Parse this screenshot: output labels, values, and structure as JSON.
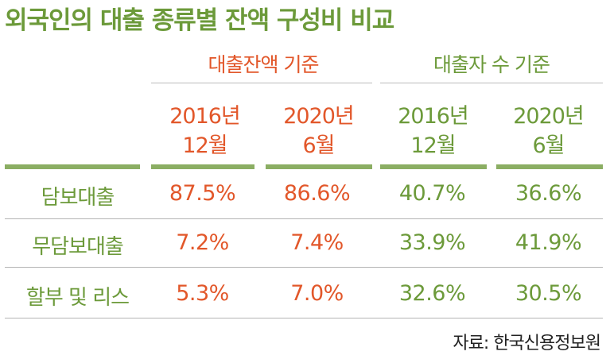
{
  "title": "외국인의 대출 종류별 잔액 구성비 비교",
  "source": "자료: 한국신용정보원",
  "chart_data": {
    "type": "table",
    "title": "외국인의 대출 종류별 잔액 구성비 비교",
    "column_groups": [
      {
        "label": "대출잔액 기준",
        "color": "#e2572a"
      },
      {
        "label": "대출자 수 기준",
        "color": "#6c9a3a"
      }
    ],
    "columns": [
      {
        "line1": "2016년",
        "line2": "12월"
      },
      {
        "line1": "2020년",
        "line2": "6월"
      },
      {
        "line1": "2016년",
        "line2": "12월"
      },
      {
        "line1": "2020년",
        "line2": "6월"
      }
    ],
    "rows": [
      {
        "label": "담보대출",
        "values": [
          "87.5%",
          "86.6%",
          "40.7%",
          "36.6%"
        ]
      },
      {
        "label": "무담보대출",
        "values": [
          "7.2%",
          "7.4%",
          "33.9%",
          "41.9%"
        ]
      },
      {
        "label": "할부 및 리스",
        "values": [
          "5.3%",
          "7.0%",
          "32.6%",
          "30.5%"
        ]
      }
    ],
    "colors": {
      "balance": "#e2572a",
      "borrowers": "#6c9a3a",
      "rule": "#8bae63"
    }
  }
}
